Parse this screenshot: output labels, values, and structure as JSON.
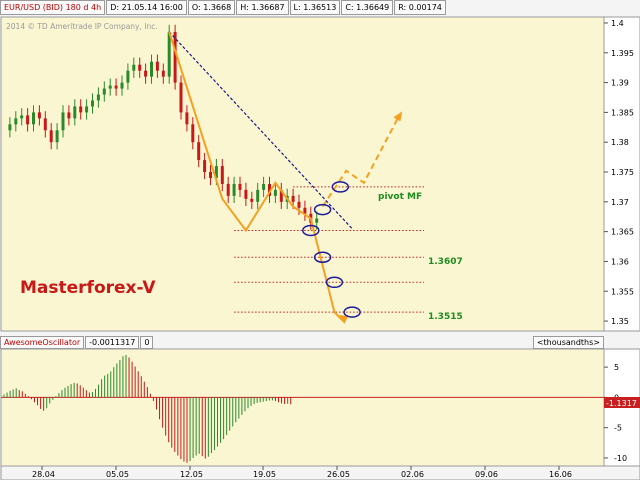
{
  "header": {
    "symbol": "EUR/USD (BID) 180 d 4h",
    "date": "D: 21.05.14 16:00",
    "open": "O: 1.3668",
    "high": "H: 1.36687",
    "low": "L: 1.36513",
    "close": "C: 1.36649",
    "range": "R: 0.00174"
  },
  "watermark": "2014 © TD Ameritrade IP Company, Inc.",
  "brand": "Masterforex-V",
  "annotations": {
    "pivot": "pivot MF",
    "target1": "1.3607",
    "target2": "1.3515"
  },
  "oscillator": {
    "name": "AwesomeOscillator",
    "value": "-0.0011317",
    "param": "0",
    "units": "<thousandths>",
    "current_label": "-1.1317"
  },
  "colors": {
    "background": "#faf6d2",
    "up_candle": "#2a8a2a",
    "down_candle": "#c81818",
    "orange": "#f5a020",
    "blue_dash": "#1a1a8a",
    "red_dotted": "#c82020",
    "brand_text": "#c81818",
    "annotation_text": "#1e8c1e",
    "circle": "#20209a"
  },
  "chart_data": [
    {
      "type": "line",
      "title": "",
      "price_axis_ticks": [
        "1.4",
        "1.395",
        "1.39",
        "1.385",
        "1.38",
        "1.375",
        "1.37",
        "1.365",
        "1.36",
        "1.355",
        "1.35"
      ],
      "x_tick_labels": [
        "28.04",
        "05.05",
        "12.05",
        "19.05",
        "26.05",
        "02.06",
        "09.06",
        "16.06"
      ],
      "ylim": [
        1.3485,
        1.4005
      ],
      "price_path": [
        [
          0,
          1.382
        ],
        [
          2,
          1.383
        ],
        [
          4,
          1.384
        ],
        [
          6,
          1.3845
        ],
        [
          8,
          1.383
        ],
        [
          10,
          1.385
        ],
        [
          12,
          1.384
        ],
        [
          14,
          1.382
        ],
        [
          16,
          1.38
        ],
        [
          18,
          1.382
        ],
        [
          20,
          1.385
        ],
        [
          22,
          1.384
        ],
        [
          24,
          1.386
        ],
        [
          26,
          1.385
        ],
        [
          28,
          1.386
        ],
        [
          30,
          1.387
        ],
        [
          32,
          1.388
        ],
        [
          34,
          1.389
        ],
        [
          36,
          1.3895
        ],
        [
          38,
          1.389
        ],
        [
          40,
          1.39
        ],
        [
          42,
          1.392
        ],
        [
          44,
          1.393
        ],
        [
          46,
          1.392
        ],
        [
          48,
          1.391
        ],
        [
          50,
          1.3935
        ],
        [
          52,
          1.392
        ],
        [
          54,
          1.391
        ],
        [
          56,
          1.3985
        ],
        [
          58,
          1.39
        ],
        [
          60,
          1.385
        ],
        [
          62,
          1.383
        ],
        [
          64,
          1.38
        ],
        [
          66,
          1.377
        ],
        [
          68,
          1.375
        ],
        [
          70,
          1.374
        ],
        [
          72,
          1.376
        ],
        [
          74,
          1.373
        ],
        [
          76,
          1.371
        ],
        [
          78,
          1.373
        ],
        [
          80,
          1.372
        ],
        [
          82,
          1.3705
        ],
        [
          84,
          1.37
        ],
        [
          86,
          1.372
        ],
        [
          88,
          1.373
        ],
        [
          90,
          1.371
        ],
        [
          92,
          1.372
        ],
        [
          94,
          1.37
        ],
        [
          96,
          1.371
        ],
        [
          98,
          1.37
        ],
        [
          100,
          1.369
        ],
        [
          102,
          1.368
        ],
        [
          104,
          1.3665
        ],
        [
          106,
          1.3672
        ]
      ],
      "zigzag": [
        [
          56,
          1.3985
        ],
        [
          74,
          1.3705
        ],
        [
          82,
          1.3652
        ],
        [
          92,
          1.3732
        ],
        [
          98,
          1.3692
        ],
        [
          104,
          1.3672
        ],
        [
          112,
          1.3515
        ],
        [
          115,
          1.35
        ]
      ],
      "projection": [
        [
          108,
          1.3692
        ],
        [
          116,
          1.3752
        ],
        [
          122,
          1.3732
        ],
        [
          134,
          1.3845
        ]
      ],
      "trendline": [
        [
          56,
          1.3985
        ],
        [
          118,
          1.3655
        ]
      ],
      "levels": [
        {
          "price": 1.3725,
          "label": "pivot MF"
        },
        {
          "price": 1.3652,
          "label": ""
        },
        {
          "price": 1.3607,
          "label": "1.3607"
        },
        {
          "price": 1.3565,
          "label": ""
        },
        {
          "price": 1.3515,
          "label": "1.3515"
        }
      ],
      "circled_points": [
        [
          114,
          1.3725
        ],
        [
          108,
          1.3687
        ],
        [
          104,
          1.3652
        ],
        [
          108,
          1.3607
        ],
        [
          112,
          1.3565
        ],
        [
          118,
          1.3515
        ]
      ]
    },
    {
      "type": "bar",
      "title": "AwesomeOscillator",
      "y_tick_labels": [
        "5",
        "0",
        "-5",
        "-10"
      ],
      "ylim": [
        -11,
        7.5
      ],
      "bars": [
        0.5,
        0.8,
        1.1,
        1.3,
        1.5,
        1.2,
        1.0,
        0.6,
        0.2,
        -0.3,
        -0.8,
        -1.3,
        -1.9,
        -2.2,
        -1.8,
        -1.0,
        -0.4,
        0.2,
        0.7,
        1.2,
        1.6,
        1.9,
        2.2,
        2.4,
        2.3,
        2.0,
        1.6,
        1.2,
        0.8,
        0.9,
        1.4,
        2.1,
        3.0,
        3.6,
        3.9,
        4.3,
        5.0,
        5.6,
        6.2,
        6.8,
        7.0,
        6.6,
        5.9,
        5.1,
        4.3,
        3.5,
        2.6,
        1.7,
        0.6,
        -0.6,
        -2.0,
        -3.6,
        -5.0,
        -6.3,
        -7.4,
        -8.3,
        -9.0,
        -9.6,
        -10.2,
        -10.6,
        -10.8,
        -10.5,
        -10.0,
        -9.6,
        -9.3,
        -9.7,
        -10.1,
        -9.8,
        -9.2,
        -8.7,
        -8.1,
        -7.5,
        -6.9,
        -6.2,
        -5.5,
        -4.8,
        -4.1,
        -3.5,
        -2.9,
        -2.3,
        -1.8,
        -1.4,
        -1.1,
        -0.9,
        -0.8,
        -0.7,
        -0.6,
        -0.5,
        -0.5,
        -0.6,
        -0.8,
        -1.0,
        -1.1,
        -1.05,
        -1.1317
      ]
    }
  ]
}
